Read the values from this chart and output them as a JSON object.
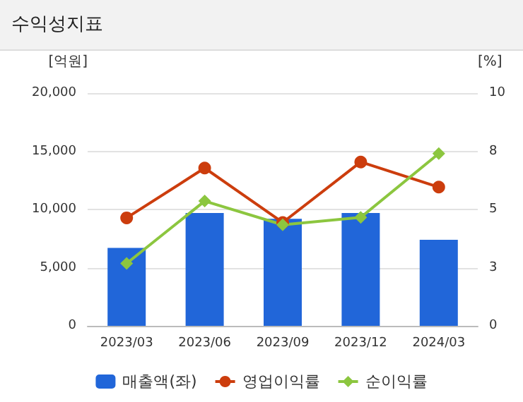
{
  "chart_data": {
    "type": "bar",
    "title": "수익성지표",
    "ylabel": "[억원]",
    "y2label": "[%]",
    "categories": [
      "2023/03",
      "2023/06",
      "2023/09",
      "2023/12",
      "2024/03"
    ],
    "series": [
      {
        "name": "매출액(좌)",
        "color": "#2166d9",
        "values": [
          6700,
          9700,
          9200,
          9700,
          7400
        ]
      },
      {
        "name": "영업이익률",
        "type": "line",
        "axis": "y2",
        "marker": "circle",
        "color": "#cc3d0d",
        "values": [
          4.64,
          6.78,
          4.44,
          7.04,
          5.96
        ]
      },
      {
        "name": "순이익률",
        "type": "line",
        "axis": "y2",
        "marker": "diamond",
        "color": "#8cc63f",
        "values": [
          2.68,
          5.36,
          4.34,
          4.66,
          7.4
        ]
      }
    ],
    "ylim": [
      0,
      20000
    ],
    "yticks": [
      {
        "value": 0,
        "label": "0"
      },
      {
        "value": 5000,
        "label": "5,000"
      },
      {
        "value": 10000,
        "label": "10,000"
      },
      {
        "value": 15000,
        "label": "15,000"
      },
      {
        "value": 20000,
        "label": "20,000"
      }
    ],
    "y2lim": [
      0,
      10
    ],
    "y2ticks": [
      0,
      {
        "value": 2.5,
        "label": "3"
      },
      5,
      {
        "value": 7.5,
        "label": "8"
      },
      10
    ],
    "grid": "y",
    "legend": "bottom"
  }
}
